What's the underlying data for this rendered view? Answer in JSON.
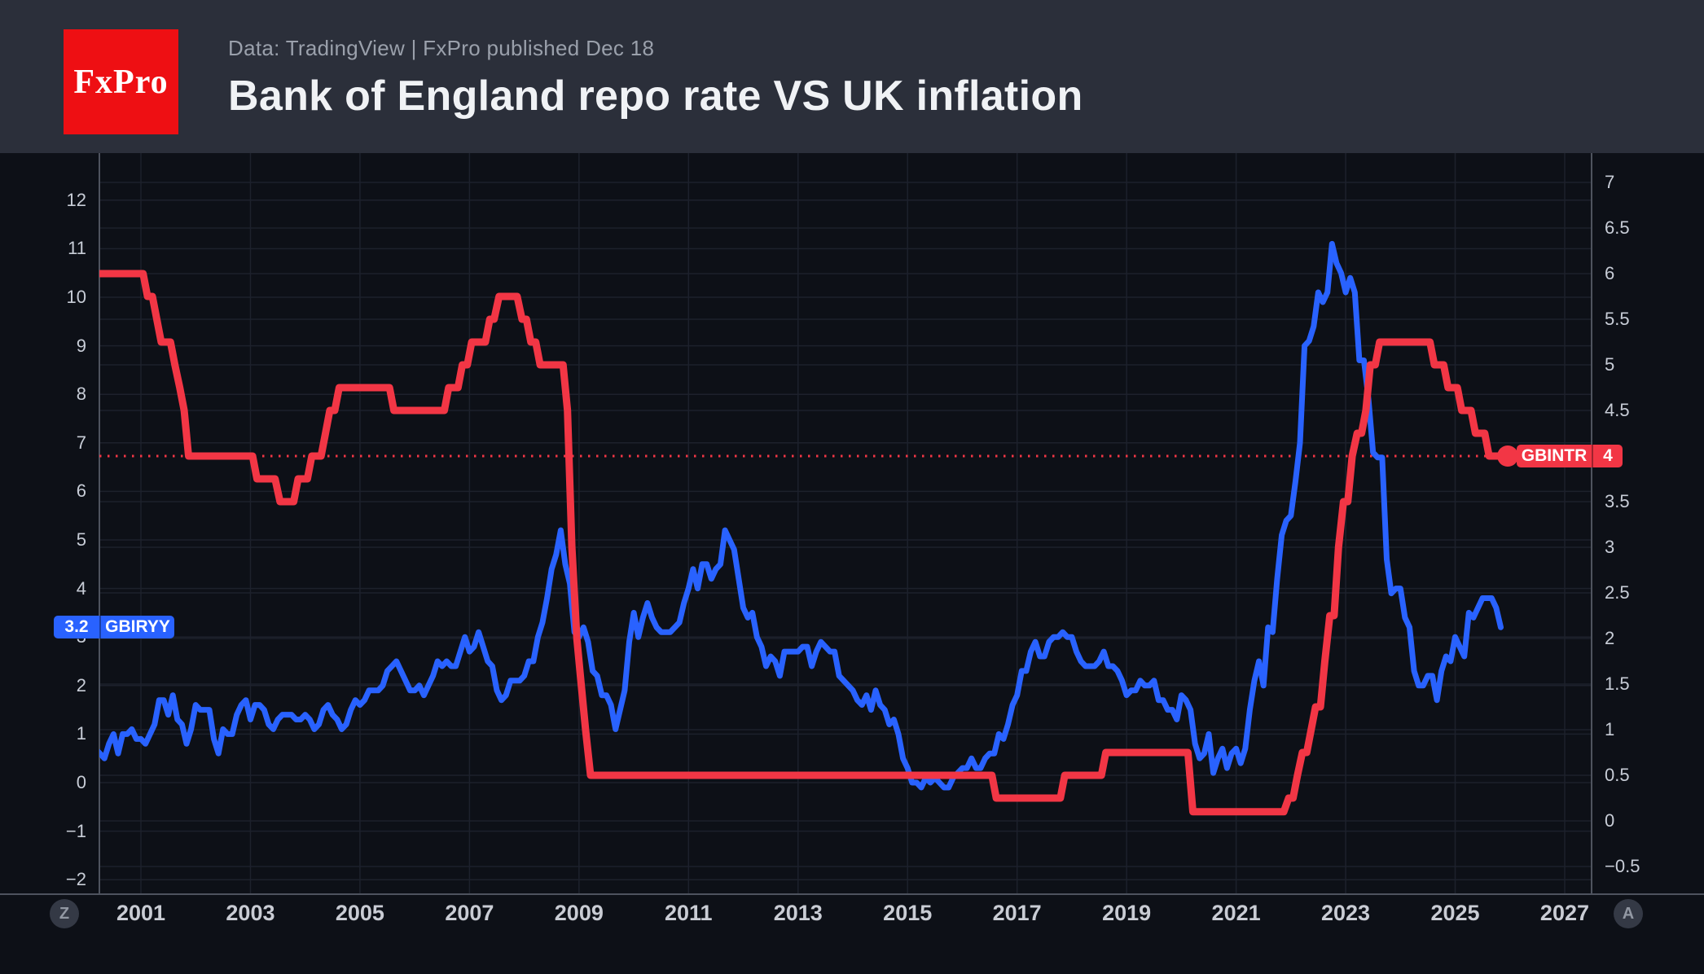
{
  "header": {
    "logo_text": "FxPro",
    "subtitle": "Data: TradingView  |  FxPro published Dec 18",
    "title": "Bank of England repo rate VS UK inflation"
  },
  "toolbar": {
    "zoom_button": "Z",
    "auto_button": "A"
  },
  "badges": {
    "inflation": {
      "value": "3.2",
      "name": "GBIRYY"
    },
    "repo": {
      "name": "GBINTR",
      "value": "4"
    }
  },
  "colors": {
    "header_bg": "#2b2f3a",
    "chart_bg": "#0d1017",
    "logo_red": "#ee0f13",
    "grid": "#1d212c",
    "axis_line": "#4e535e",
    "repo_red": "#f23645",
    "inflation_blue": "#2962ff",
    "axis_text": "#c8cdd7",
    "year_text": "#c9ccd4",
    "badge_text": "#ffffff"
  },
  "axes": {
    "left_ticks": [
      {
        "v": 12,
        "t": "12"
      },
      {
        "v": 11,
        "t": "11"
      },
      {
        "v": 10,
        "t": "10"
      },
      {
        "v": 9,
        "t": "9"
      },
      {
        "v": 8,
        "t": "8"
      },
      {
        "v": 7,
        "t": "7"
      },
      {
        "v": 6,
        "t": "6"
      },
      {
        "v": 5,
        "t": "5"
      },
      {
        "v": 4,
        "t": "4"
      },
      {
        "v": 3,
        "t": "3"
      },
      {
        "v": 2,
        "t": "2"
      },
      {
        "v": 1,
        "t": "1"
      },
      {
        "v": 0,
        "t": "0"
      },
      {
        "v": -1,
        "t": "−1"
      },
      {
        "v": -2,
        "t": "−2"
      }
    ],
    "right_ticks": [
      {
        "v": 7,
        "t": "7"
      },
      {
        "v": 6.5,
        "t": "6.5"
      },
      {
        "v": 6,
        "t": "6"
      },
      {
        "v": 5.5,
        "t": "5.5"
      },
      {
        "v": 5,
        "t": "5"
      },
      {
        "v": 4.5,
        "t": "4.5"
      },
      {
        "v": 3.5,
        "t": "3.5"
      },
      {
        "v": 3,
        "t": "3"
      },
      {
        "v": 2.5,
        "t": "2.5"
      },
      {
        "v": 2,
        "t": "2"
      },
      {
        "v": 1.5,
        "t": "1.5"
      },
      {
        "v": 1,
        "t": "1"
      },
      {
        "v": 0.5,
        "t": "0.5"
      },
      {
        "v": 0,
        "t": "0"
      },
      {
        "v": -0.5,
        "t": "−0.5"
      }
    ],
    "x_ticks": [
      {
        "v": 2001,
        "t": "2001"
      },
      {
        "v": 2003,
        "t": "2003"
      },
      {
        "v": 2005,
        "t": "2005"
      },
      {
        "v": 2007,
        "t": "2007"
      },
      {
        "v": 2009,
        "t": "2009"
      },
      {
        "v": 2011,
        "t": "2011"
      },
      {
        "v": 2013,
        "t": "2013"
      },
      {
        "v": 2015,
        "t": "2015"
      },
      {
        "v": 2017,
        "t": "2017"
      },
      {
        "v": 2019,
        "t": "2019"
      },
      {
        "v": 2021,
        "t": "2021"
      },
      {
        "v": 2023,
        "t": "2023"
      },
      {
        "v": 2025,
        "t": "2025"
      },
      {
        "v": 2027,
        "t": "2027"
      }
    ]
  },
  "chart_data": {
    "type": "line",
    "title": "Bank of England repo rate VS UK inflation",
    "grid": true,
    "x_range": [
      2000.26,
      2027.5
    ],
    "left_axis": {
      "range": [
        -2.4,
        13
      ],
      "tick_step": 1
    },
    "right_axis": {
      "range": [
        -0.8,
        7.3
      ],
      "tick_step": 0.5
    },
    "current_value_line": {
      "series": "GBINTR",
      "value": 4,
      "style": "dotted"
    },
    "series": [
      {
        "name": "GBIRYY",
        "color": "#2962ff",
        "axis": "left",
        "last_value": 3.2,
        "start_year": 2000,
        "interval_months": 1,
        "values": [
          0.8,
          0.9,
          0.7,
          0.6,
          0.5,
          0.8,
          1.0,
          0.6,
          1.0,
          1.0,
          1.1,
          0.9,
          0.9,
          0.8,
          1.0,
          1.2,
          1.7,
          1.7,
          1.4,
          1.8,
          1.3,
          1.2,
          0.8,
          1.1,
          1.6,
          1.5,
          1.5,
          1.5,
          0.9,
          0.6,
          1.1,
          1.0,
          1.0,
          1.4,
          1.6,
          1.7,
          1.3,
          1.6,
          1.6,
          1.5,
          1.2,
          1.1,
          1.3,
          1.4,
          1.4,
          1.4,
          1.3,
          1.3,
          1.4,
          1.3,
          1.1,
          1.2,
          1.5,
          1.6,
          1.4,
          1.3,
          1.1,
          1.2,
          1.5,
          1.7,
          1.6,
          1.7,
          1.9,
          1.9,
          1.9,
          2.0,
          2.3,
          2.4,
          2.5,
          2.3,
          2.1,
          1.9,
          1.9,
          2.0,
          1.8,
          2.0,
          2.2,
          2.5,
          2.4,
          2.5,
          2.4,
          2.4,
          2.7,
          3.0,
          2.7,
          2.8,
          3.1,
          2.8,
          2.5,
          2.4,
          1.9,
          1.7,
          1.8,
          2.1,
          2.1,
          2.1,
          2.2,
          2.5,
          2.5,
          3.0,
          3.3,
          3.8,
          4.4,
          4.7,
          5.2,
          4.5,
          4.1,
          3.1,
          3.0,
          3.2,
          2.9,
          2.3,
          2.2,
          1.8,
          1.8,
          1.6,
          1.1,
          1.5,
          1.9,
          2.9,
          3.5,
          3.0,
          3.4,
          3.7,
          3.4,
          3.2,
          3.1,
          3.1,
          3.1,
          3.2,
          3.3,
          3.7,
          4.0,
          4.4,
          4.0,
          4.5,
          4.5,
          4.2,
          4.4,
          4.5,
          5.2,
          5.0,
          4.8,
          4.2,
          3.6,
          3.4,
          3.5,
          3.0,
          2.8,
          2.4,
          2.6,
          2.5,
          2.2,
          2.7,
          2.7,
          2.7,
          2.7,
          2.8,
          2.8,
          2.4,
          2.7,
          2.9,
          2.8,
          2.7,
          2.7,
          2.2,
          2.1,
          2.0,
          1.9,
          1.7,
          1.6,
          1.8,
          1.5,
          1.9,
          1.6,
          1.5,
          1.2,
          1.3,
          1.0,
          0.5,
          0.3,
          0.0,
          0.0,
          -0.1,
          0.1,
          0.0,
          0.1,
          0.0,
          -0.1,
          -0.1,
          0.1,
          0.2,
          0.3,
          0.3,
          0.5,
          0.3,
          0.3,
          0.5,
          0.6,
          0.6,
          1.0,
          0.9,
          1.2,
          1.6,
          1.8,
          2.3,
          2.3,
          2.7,
          2.9,
          2.6,
          2.6,
          2.9,
          3.0,
          3.0,
          3.1,
          3.0,
          3.0,
          2.7,
          2.5,
          2.4,
          2.4,
          2.4,
          2.5,
          2.7,
          2.4,
          2.4,
          2.3,
          2.1,
          1.8,
          1.9,
          1.9,
          2.1,
          2.0,
          2.0,
          2.1,
          1.7,
          1.7,
          1.5,
          1.5,
          1.3,
          1.8,
          1.7,
          1.5,
          0.8,
          0.5,
          0.6,
          1.0,
          0.2,
          0.5,
          0.7,
          0.3,
          0.6,
          0.7,
          0.4,
          0.7,
          1.5,
          2.1,
          2.5,
          2.0,
          3.2,
          3.1,
          4.2,
          5.1,
          5.4,
          5.5,
          6.2,
          7.0,
          9.0,
          9.1,
          9.4,
          10.1,
          9.9,
          10.1,
          11.1,
          10.7,
          10.5,
          10.1,
          10.4,
          10.1,
          8.7,
          8.7,
          7.9,
          6.8,
          6.7,
          6.7,
          4.6,
          3.9,
          4.0,
          4.0,
          3.4,
          3.2,
          2.3,
          2.0,
          2.0,
          2.2,
          2.2,
          1.7,
          2.3,
          2.6,
          2.5,
          3.0,
          2.8,
          2.6,
          3.5,
          3.4,
          3.6,
          3.8,
          3.8,
          3.8,
          3.6,
          3.2
        ]
      },
      {
        "name": "GBINTR",
        "color": "#f23645",
        "axis": "right",
        "last_value": 4,
        "end_marker": true,
        "points": [
          [
            2000.26,
            6
          ],
          [
            2001.04,
            6
          ],
          [
            2001.12,
            5.75
          ],
          [
            2001.21,
            5.75
          ],
          [
            2001.29,
            5.5
          ],
          [
            2001.37,
            5.25
          ],
          [
            2001.54,
            5.25
          ],
          [
            2001.62,
            5
          ],
          [
            2001.71,
            4.75
          ],
          [
            2001.79,
            4.5
          ],
          [
            2001.87,
            4
          ],
          [
            2003.04,
            4
          ],
          [
            2003.12,
            3.75
          ],
          [
            2003.45,
            3.75
          ],
          [
            2003.54,
            3.5
          ],
          [
            2003.79,
            3.5
          ],
          [
            2003.87,
            3.75
          ],
          [
            2004.04,
            3.75
          ],
          [
            2004.12,
            4
          ],
          [
            2004.29,
            4
          ],
          [
            2004.37,
            4.25
          ],
          [
            2004.45,
            4.5
          ],
          [
            2004.54,
            4.5
          ],
          [
            2004.62,
            4.75
          ],
          [
            2005.54,
            4.75
          ],
          [
            2005.62,
            4.5
          ],
          [
            2006.54,
            4.5
          ],
          [
            2006.62,
            4.75
          ],
          [
            2006.79,
            4.75
          ],
          [
            2006.87,
            5
          ],
          [
            2006.96,
            5
          ],
          [
            2007.04,
            5.25
          ],
          [
            2007.29,
            5.25
          ],
          [
            2007.37,
            5.5
          ],
          [
            2007.45,
            5.5
          ],
          [
            2007.54,
            5.75
          ],
          [
            2007.87,
            5.75
          ],
          [
            2007.96,
            5.5
          ],
          [
            2008.04,
            5.5
          ],
          [
            2008.12,
            5.25
          ],
          [
            2008.21,
            5.25
          ],
          [
            2008.29,
            5
          ],
          [
            2008.71,
            5
          ],
          [
            2008.79,
            4.5
          ],
          [
            2008.87,
            3
          ],
          [
            2008.96,
            2
          ],
          [
            2009.04,
            1.5
          ],
          [
            2009.12,
            1
          ],
          [
            2009.21,
            0.5
          ],
          [
            2016.54,
            0.5
          ],
          [
            2016.62,
            0.25
          ],
          [
            2017.79,
            0.25
          ],
          [
            2017.87,
            0.5
          ],
          [
            2018.54,
            0.5
          ],
          [
            2018.62,
            0.75
          ],
          [
            2020.12,
            0.75
          ],
          [
            2020.21,
            0.1
          ],
          [
            2021.87,
            0.1
          ],
          [
            2021.96,
            0.25
          ],
          [
            2022.04,
            0.25
          ],
          [
            2022.12,
            0.5
          ],
          [
            2022.21,
            0.75
          ],
          [
            2022.29,
            0.75
          ],
          [
            2022.37,
            1
          ],
          [
            2022.45,
            1.25
          ],
          [
            2022.54,
            1.25
          ],
          [
            2022.62,
            1.75
          ],
          [
            2022.71,
            2.25
          ],
          [
            2022.79,
            2.25
          ],
          [
            2022.87,
            3
          ],
          [
            2022.96,
            3.5
          ],
          [
            2023.04,
            3.5
          ],
          [
            2023.12,
            4
          ],
          [
            2023.21,
            4.25
          ],
          [
            2023.29,
            4.25
          ],
          [
            2023.37,
            4.5
          ],
          [
            2023.45,
            5
          ],
          [
            2023.54,
            5
          ],
          [
            2023.62,
            5.25
          ],
          [
            2024.54,
            5.25
          ],
          [
            2024.62,
            5
          ],
          [
            2024.79,
            5
          ],
          [
            2024.87,
            4.75
          ],
          [
            2025.04,
            4.75
          ],
          [
            2025.12,
            4.5
          ],
          [
            2025.29,
            4.5
          ],
          [
            2025.37,
            4.25
          ],
          [
            2025.54,
            4.25
          ],
          [
            2025.62,
            4
          ],
          [
            2025.96,
            4
          ]
        ]
      }
    ]
  }
}
